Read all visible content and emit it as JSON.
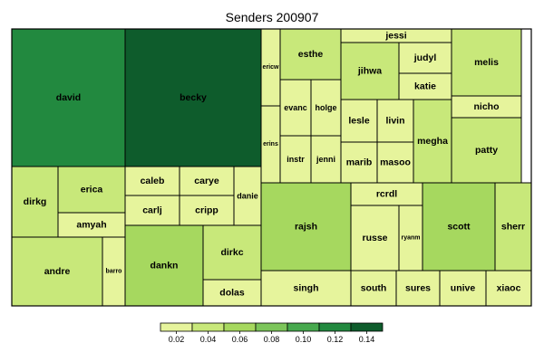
{
  "chart_data": {
    "type": "treemap",
    "title": "Senders 200907",
    "colors": [
      "#e6f49c",
      "#c8e87a",
      "#a6d85f",
      "#7cc55a",
      "#47a94e",
      "#22893f",
      "#0e5c2c"
    ],
    "legend": {
      "ticks": [
        "0.02",
        "0.04",
        "0.06",
        "0.08",
        "0.10",
        "0.12",
        "0.14"
      ]
    },
    "cells": [
      {
        "name": "david",
        "value": 0.11
      },
      {
        "name": "becky",
        "value": 0.14
      },
      {
        "name": "dirkg",
        "value": 0.04
      },
      {
        "name": "erica",
        "value": 0.04
      },
      {
        "name": "amyah",
        "value": 0.02
      },
      {
        "name": "andre",
        "value": 0.04
      },
      {
        "name": "barro",
        "value": 0.02
      },
      {
        "name": "caleb",
        "value": 0.02
      },
      {
        "name": "carye",
        "value": 0.02
      },
      {
        "name": "danie",
        "value": 0.02
      },
      {
        "name": "carlj",
        "value": 0.02
      },
      {
        "name": "cripp",
        "value": 0.02
      },
      {
        "name": "dankn",
        "value": 0.05
      },
      {
        "name": "dirkc",
        "value": 0.04
      },
      {
        "name": "dolas",
        "value": 0.02
      },
      {
        "name": "ericw",
        "value": 0.02
      },
      {
        "name": "erins",
        "value": 0.02
      },
      {
        "name": "esthe",
        "value": 0.03
      },
      {
        "name": "evanc",
        "value": 0.02
      },
      {
        "name": "holge",
        "value": 0.02
      },
      {
        "name": "instr",
        "value": 0.02
      },
      {
        "name": "jenni",
        "value": 0.02
      },
      {
        "name": "jessi",
        "value": 0.02
      },
      {
        "name": "jihwa",
        "value": 0.03
      },
      {
        "name": "judyl",
        "value": 0.02
      },
      {
        "name": "katie",
        "value": 0.02
      },
      {
        "name": "lesle",
        "value": 0.02
      },
      {
        "name": "livin",
        "value": 0.02
      },
      {
        "name": "marib",
        "value": 0.02
      },
      {
        "name": "masoo",
        "value": 0.02
      },
      {
        "name": "megha",
        "value": 0.03
      },
      {
        "name": "melis",
        "value": 0.04
      },
      {
        "name": "nicho",
        "value": 0.02
      },
      {
        "name": "patty",
        "value": 0.04
      },
      {
        "name": "rajsh",
        "value": 0.06
      },
      {
        "name": "rcrdl",
        "value": 0.02
      },
      {
        "name": "russe",
        "value": 0.02
      },
      {
        "name": "ryanm",
        "value": 0.02
      },
      {
        "name": "scott",
        "value": 0.05
      },
      {
        "name": "sherr",
        "value": 0.03
      },
      {
        "name": "singh",
        "value": 0.02
      },
      {
        "name": "south",
        "value": 0.02
      },
      {
        "name": "sures",
        "value": 0.02
      },
      {
        "name": "unive",
        "value": 0.02
      },
      {
        "name": "xiaoc",
        "value": 0.02
      }
    ]
  }
}
